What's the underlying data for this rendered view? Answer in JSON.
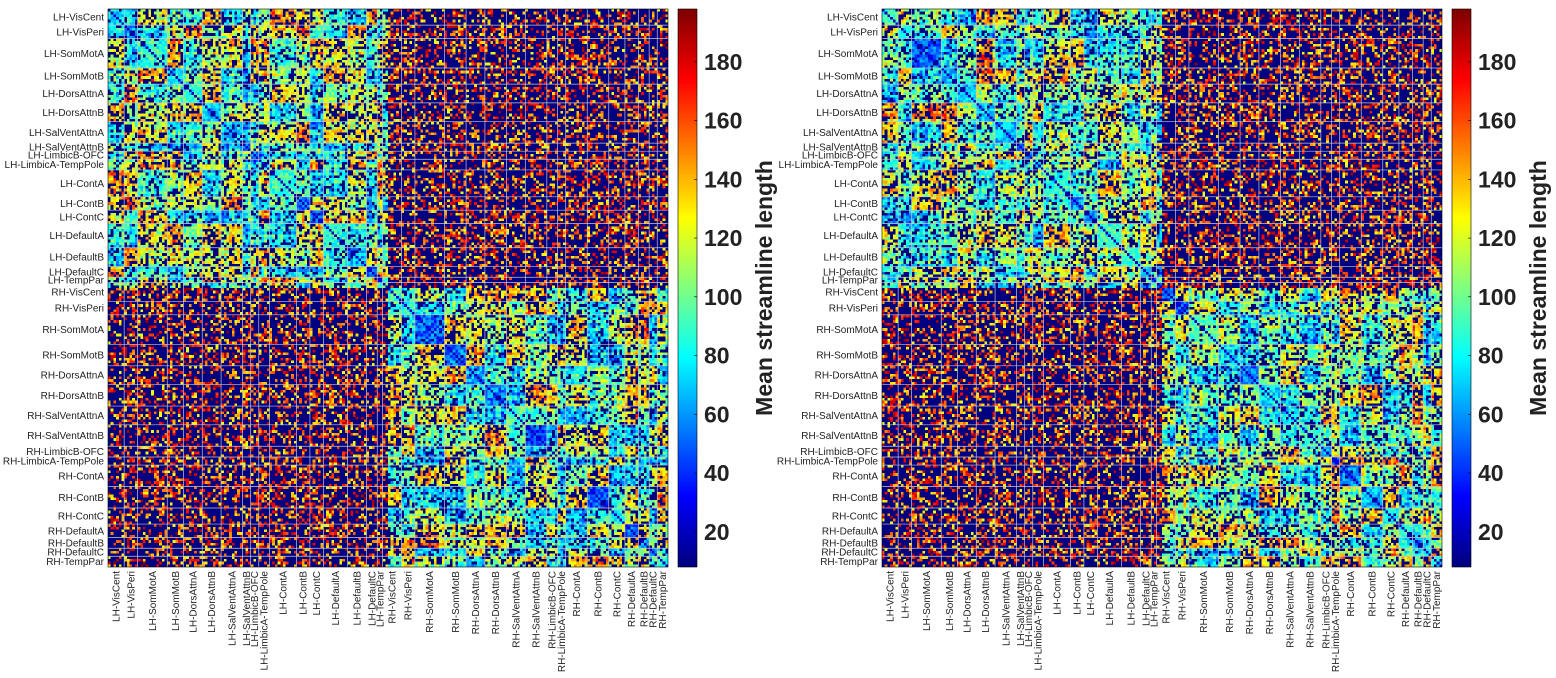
{
  "chart_data": [
    {
      "type": "heatmap",
      "title": "",
      "colorbar_label": "Mean streamline length",
      "colorbar_ticks": [
        20,
        40,
        60,
        80,
        100,
        120,
        140,
        160,
        180
      ],
      "value_range": [
        8,
        198
      ],
      "colormap": "jet",
      "row_labels": [
        "LH-VisCent",
        "LH-VisPeri",
        "LH-SomMotA",
        "LH-SomMotB",
        "LH-DorsAttnA",
        "LH-DorsAttnB",
        "LH-SalVentAttnA",
        "LH-SalVentAttnB",
        "LH-LimbicB-OFC",
        "LH-LimbicA-TempPole",
        "LH-ContA",
        "LH-ContB",
        "LH-ContC",
        "LH-DefaultA",
        "LH-DefaultB",
        "LH-DefaultC",
        "LH-TempPar",
        "RH-VisCent",
        "RH-VisPeri",
        "RH-SomMotA",
        "RH-SomMotB",
        "RH-DorsAttnA",
        "RH-DorsAttnB",
        "RH-SalVentAttnA",
        "RH-SalVentAttnB",
        "RH-LimbicB-OFC",
        "RH-LimbicA-TempPole",
        "RH-ContA",
        "RH-ContB",
        "RH-ContC",
        "RH-DefaultA",
        "RH-DefaultB",
        "RH-DefaultC",
        "RH-TempPar"
      ],
      "col_labels": [
        "LH-VisCent",
        "LH-VisPeri",
        "LH-SomMotA",
        "LH-SomMotB",
        "LH-DorsAttnA",
        "LH-DorsAttnB",
        "LH-SalVentAttnA",
        "LH-SalVentAttnB",
        "LH-LimbicB-OFC",
        "LH-LimbicA-TempPole",
        "LH-ContA",
        "LH-ContB",
        "LH-ContC",
        "LH-DefaultA",
        "LH-DefaultB",
        "LH-DefaultC",
        "LH-TempPar",
        "RH-VisCent",
        "RH-VisPeri",
        "RH-SomMotA",
        "RH-SomMotB",
        "RH-DorsAttnA",
        "RH-DorsAttnB",
        "RH-SalVentAttnA",
        "RH-SalVentAttnB",
        "RH-LimbicB-OFC",
        "RH-LimbicA-TempPole",
        "RH-ContA",
        "RH-ContB",
        "RH-ContC",
        "RH-DefaultA",
        "RH-DefaultB",
        "RH-DefaultC",
        "RH-TempPar"
      ],
      "network_boundaries": [
        0,
        6,
        11,
        22,
        28,
        35,
        42,
        50,
        53,
        56,
        60,
        70,
        75,
        80,
        89,
        96,
        100,
        102,
        109,
        114,
        125,
        133,
        140,
        148,
        155,
        163,
        167,
        170,
        178,
        186,
        192,
        197,
        201,
        204,
        208
      ],
      "region_count": 208,
      "seed": 1
    },
    {
      "type": "heatmap",
      "title": "",
      "colorbar_label": "Mean streamline length",
      "colorbar_ticks": [
        20,
        40,
        60,
        80,
        100,
        120,
        140,
        160,
        180
      ],
      "value_range": [
        8,
        198
      ],
      "colormap": "jet",
      "row_labels": [
        "LH-VisCent",
        "LH-VisPeri",
        "LH-SomMotA",
        "LH-SomMotB",
        "LH-DorsAttnA",
        "LH-DorsAttnB",
        "LH-SalVentAttnA",
        "LH-SalVentAttnB",
        "LH-LimbicB-OFC",
        "LH-LimbicA-TempPole",
        "LH-ContA",
        "LH-ContB",
        "LH-ContC",
        "LH-DefaultA",
        "LH-DefaultB",
        "LH-DefaultC",
        "LH-TempPar",
        "RH-VisCent",
        "RH-VisPeri",
        "RH-SomMotA",
        "RH-SomMotB",
        "RH-DorsAttnA",
        "RH-DorsAttnB",
        "RH-SalVentAttnA",
        "RH-SalVentAttnB",
        "RH-LimbicB-OFC",
        "RH-LimbicA-TempPole",
        "RH-ContA",
        "RH-ContB",
        "RH-ContC",
        "RH-DefaultA",
        "RH-DefaultB",
        "RH-DefaultC",
        "RH-TempPar"
      ],
      "col_labels": [
        "LH-VisCent",
        "LH-VisPeri",
        "LH-SomMotA",
        "LH-SomMotB",
        "LH-DorsAttnA",
        "LH-DorsAttnB",
        "LH-SalVentAttnA",
        "LH-SalVentAttnB",
        "LH-LimbicB-OFC",
        "LH-LimbicA-TempPole",
        "LH-ContA",
        "LH-ContB",
        "LH-ContC",
        "LH-DefaultA",
        "LH-DefaultB",
        "LH-DefaultC",
        "LH-TempPar",
        "RH-VisCent",
        "RH-VisPeri",
        "RH-SomMotA",
        "RH-SomMotB",
        "RH-DorsAttnA",
        "RH-DorsAttnB",
        "RH-SalVentAttnA",
        "RH-SalVentAttnB",
        "RH-LimbicB-OFC",
        "RH-LimbicA-TempPole",
        "RH-ContA",
        "RH-ContB",
        "RH-ContC",
        "RH-DefaultA",
        "RH-DefaultB",
        "RH-DefaultC",
        "RH-TempPar"
      ],
      "network_boundaries": [
        0,
        6,
        11,
        22,
        28,
        35,
        42,
        50,
        53,
        56,
        60,
        70,
        75,
        80,
        89,
        96,
        100,
        102,
        109,
        114,
        125,
        133,
        140,
        148,
        155,
        163,
        167,
        170,
        178,
        186,
        192,
        197,
        201,
        204,
        208
      ],
      "region_count": 208,
      "seed": 7
    }
  ]
}
